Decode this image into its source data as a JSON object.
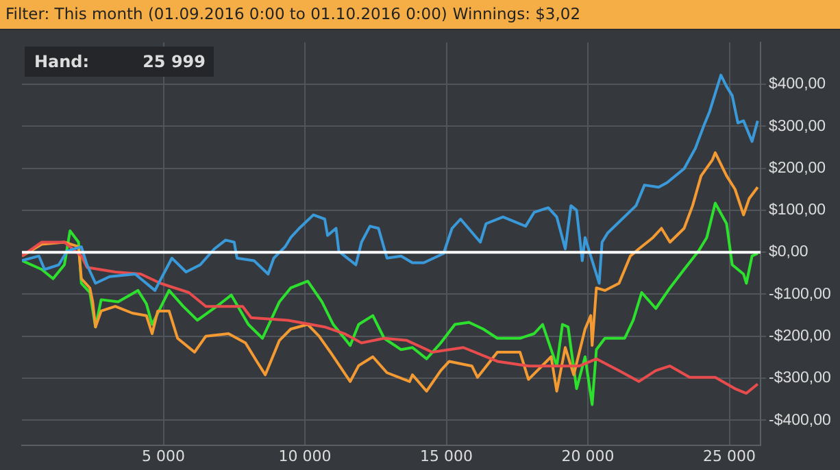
{
  "chart_data": {
    "type": "line",
    "title": "Filter: This month (01.09.2016 0:00 to 01.10.2016 0:00)",
    "subtitle": "Winnings: $3,02",
    "annotations": [
      "Hand:",
      "25 999"
    ],
    "xlim": [
      0,
      26100
    ],
    "ylim": [
      -460,
      500
    ],
    "xticks": [
      {
        "value": 5000,
        "label": "5 000"
      },
      {
        "value": 10000,
        "label": "10 000"
      },
      {
        "value": 15000,
        "label": "15 000"
      },
      {
        "value": 20000,
        "label": "20 000"
      },
      {
        "value": 25000,
        "label": "25 000"
      }
    ],
    "yticks": [
      {
        "value": -400,
        "label": "-$400,00"
      },
      {
        "value": -300,
        "label": "-$300,00"
      },
      {
        "value": -200,
        "label": "-$200,00"
      },
      {
        "value": -100,
        "label": "-$100,00"
      },
      {
        "value": 0,
        "label": "$0,00"
      },
      {
        "value": 100,
        "label": "$100,00"
      },
      {
        "value": 200,
        "label": "$200,00"
      },
      {
        "value": 300,
        "label": "$300,00"
      },
      {
        "value": 400,
        "label": "$400,00"
      }
    ],
    "grid": true,
    "legend": false,
    "marker": "none",
    "line_style": "solid",
    "ref_lines": [
      {
        "axis": "y",
        "value": 0,
        "color": "#ffffff"
      }
    ],
    "series": [
      {
        "color": "#3a9ad9",
        "x": [
          0,
          600,
          800,
          1300,
          1600,
          2100,
          2300,
          2600,
          3100,
          4000,
          4700,
          5300,
          5800,
          6300,
          6800,
          7200,
          7500,
          7600,
          8200,
          8700,
          8900,
          9300,
          9500,
          9800,
          10300,
          10700,
          10800,
          11100,
          11200,
          11800,
          12000,
          12300,
          12600,
          12900,
          13400,
          13800,
          14200,
          14900,
          15200,
          15500,
          16200,
          16400,
          17000,
          17800,
          18100,
          18600,
          18900,
          19200,
          19400,
          19600,
          19800,
          19900,
          20100,
          20400,
          20500,
          20700,
          21700,
          22000,
          22500,
          22800,
          23400,
          23800,
          24100,
          24300,
          24700,
          24900,
          25100,
          25300,
          25500,
          25800,
          25999
        ],
        "values": [
          -20,
          -9,
          -41,
          -30,
          3,
          13,
          -30,
          -74,
          -58,
          -52,
          -91,
          -14,
          -47,
          -30,
          8,
          29,
          24,
          -14,
          -20,
          -52,
          -14,
          13,
          35,
          57,
          89,
          79,
          40,
          57,
          2,
          -30,
          24,
          62,
          57,
          -14,
          -9,
          -25,
          -25,
          -3,
          57,
          79,
          24,
          68,
          84,
          62,
          95,
          106,
          84,
          8,
          111,
          100,
          -20,
          35,
          -9,
          -74,
          24,
          46,
          111,
          160,
          155,
          166,
          199,
          248,
          302,
          335,
          422,
          395,
          373,
          308,
          313,
          264,
          313
        ]
      },
      {
        "color": "#e84c4c",
        "x": [
          0,
          700,
          1500,
          2100,
          2300,
          3300,
          4200,
          4900,
          5900,
          6500,
          7800,
          8100,
          9400,
          10700,
          11400,
          12000,
          12800,
          13600,
          14500,
          15600,
          16800,
          17900,
          18900,
          19700,
          20300,
          21100,
          21800,
          22400,
          22900,
          23600,
          24500,
          25200,
          25600,
          25999
        ],
        "values": [
          -9,
          24,
          24,
          -9,
          -36,
          -47,
          -52,
          -74,
          -96,
          -129,
          -129,
          -156,
          -162,
          -178,
          -194,
          -216,
          -205,
          -210,
          -238,
          -227,
          -260,
          -271,
          -271,
          -271,
          -254,
          -282,
          -308,
          -282,
          -271,
          -298,
          -298,
          -325,
          -336,
          -314
        ]
      },
      {
        "color": "#f39a33",
        "x": [
          0,
          700,
          1500,
          2000,
          2100,
          2400,
          2500,
          2600,
          2800,
          3300,
          3900,
          4400,
          4600,
          4800,
          5200,
          5500,
          6100,
          6500,
          7300,
          7900,
          8300,
          8600,
          9100,
          9500,
          10100,
          10500,
          10900,
          11600,
          11900,
          12400,
          12900,
          13700,
          13800,
          14300,
          14800,
          15100,
          15900,
          16100,
          16800,
          17600,
          17900,
          18700,
          18900,
          19200,
          19500,
          19900,
          20100,
          20150,
          20300,
          20600,
          21100,
          21500,
          21800,
          22300,
          22600,
          22900,
          23400,
          23700,
          24000,
          24400,
          24500,
          24900,
          25200,
          25500,
          25700,
          25999
        ],
        "values": [
          -9,
          19,
          24,
          13,
          -63,
          -85,
          -118,
          -178,
          -140,
          -129,
          -145,
          -151,
          -194,
          -140,
          -140,
          -205,
          -238,
          -200,
          -194,
          -216,
          -260,
          -292,
          -210,
          -183,
          -172,
          -200,
          -238,
          -308,
          -270,
          -249,
          -287,
          -308,
          -292,
          -331,
          -282,
          -260,
          -271,
          -298,
          -238,
          -238,
          -303,
          -249,
          -331,
          -227,
          -292,
          -183,
          -151,
          -222,
          -85,
          -91,
          -74,
          -9,
          8,
          35,
          57,
          24,
          57,
          111,
          182,
          220,
          237,
          182,
          150,
          89,
          128,
          155
        ]
      },
      {
        "color": "#2ee02e",
        "x": [
          0,
          700,
          1100,
          1500,
          1700,
          2000,
          2100,
          2400,
          2600,
          2800,
          3400,
          4100,
          4400,
          4600,
          5200,
          5700,
          6200,
          7000,
          7400,
          8000,
          8500,
          9100,
          9500,
          10100,
          10600,
          11000,
          11600,
          11900,
          12400,
          12800,
          13400,
          13800,
          14300,
          14800,
          15300,
          15800,
          16300,
          16800,
          17600,
          18100,
          18400,
          18900,
          19100,
          19300,
          19600,
          19900,
          20150,
          20300,
          20600,
          21300,
          21600,
          21900,
          22400,
          22900,
          23400,
          23900,
          24200,
          24500,
          24900,
          25100,
          25500,
          25600,
          25800,
          25999
        ],
        "values": [
          -20,
          -41,
          -63,
          -30,
          51,
          24,
          -74,
          -96,
          -178,
          -113,
          -118,
          -91,
          -123,
          -172,
          -91,
          -129,
          -162,
          -123,
          -102,
          -172,
          -205,
          -118,
          -85,
          -69,
          -118,
          -172,
          -222,
          -172,
          -151,
          -205,
          -232,
          -227,
          -254,
          -216,
          -172,
          -167,
          -183,
          -205,
          -205,
          -194,
          -172,
          -271,
          -172,
          -178,
          -325,
          -249,
          -363,
          -232,
          -205,
          -205,
          -162,
          -96,
          -134,
          -85,
          -41,
          2,
          35,
          117,
          68,
          -30,
          -52,
          -74,
          -9,
          -3
        ]
      }
    ]
  }
}
